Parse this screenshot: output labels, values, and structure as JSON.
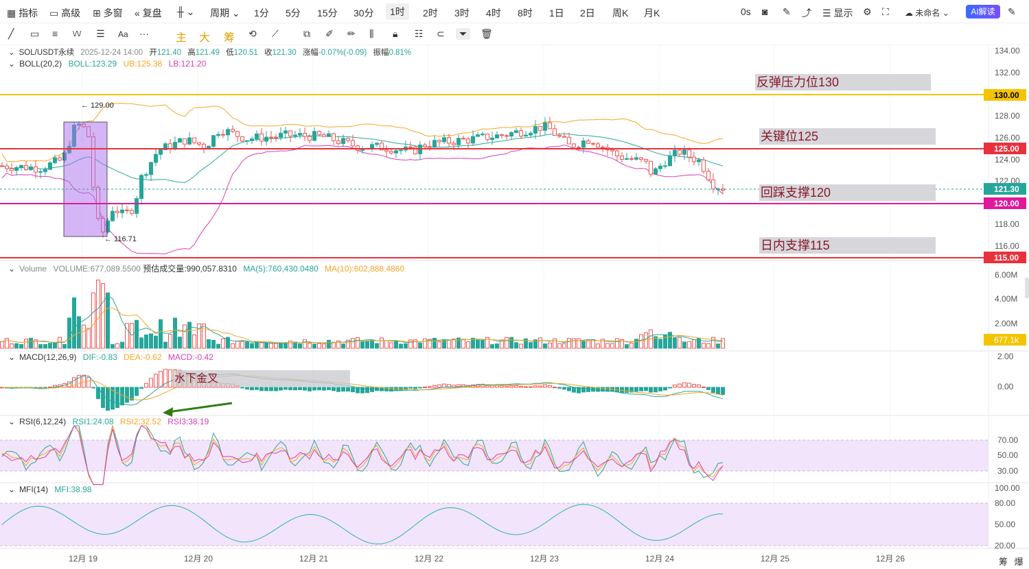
{
  "toolbar": {
    "indicators": "指标",
    "advanced": "高级",
    "multi_window": "多窗",
    "replay": "复盘",
    "chart_type_icon": "candles-icon",
    "period": "周期",
    "intervals": [
      "1分",
      "5分",
      "15分",
      "30分",
      "1时",
      "2时",
      "3时",
      "4时",
      "8时",
      "1日",
      "2日",
      "周K",
      "月K"
    ],
    "active_interval": "1时",
    "countdown": "0s",
    "display": "显示",
    "layout_name": "未命名",
    "ai_button": "AI解读"
  },
  "drawbar": {
    "tool_labels": [
      "Aa",
      "主",
      "大",
      "筹"
    ]
  },
  "legend": {
    "main": {
      "symbol": "SOL/USDT永续",
      "time": "2025-12-24 14:00",
      "open_l": "开",
      "open": "121.40",
      "high_l": "高",
      "high": "121.49",
      "low_l": "低",
      "low": "120.51",
      "close_l": "收",
      "close": "121.30",
      "chg_l": "涨幅",
      "chg": "-0.07%(-0.09)",
      "amp_l": "振幅",
      "amp": "0.81%"
    },
    "boll": {
      "name": "BOLL(20,2)",
      "boll": "BOLL:123.29",
      "ub": "UB:125.38",
      "lb": "LB:121.20"
    },
    "volume": {
      "name": "Volume",
      "vol": "VOLUME:677,089.5500",
      "est": "预估成交量:990,057.8310",
      "ma5": "MA(5):760,430.0480",
      "ma10": "MA(10):602,888.4860"
    },
    "macd": {
      "name": "MACD(12,26,9)",
      "dif": "DIF:-0.83",
      "dea": "DEA:-0.62",
      "macd": "MACD:-0.42"
    },
    "rsi": {
      "name": "RSI(6,12,24)",
      "r1": "RSI1:24.08",
      "r2": "RSI2:32.52",
      "r3": "RSI3:38.19"
    },
    "mfi": {
      "name": "MFI(14)",
      "mfi": "MFI:38.98"
    }
  },
  "annotations": {
    "res130": "反弹压力位130",
    "key125": "关键位125",
    "sup120": "回踩支撑120",
    "sup115": "日内支撑115",
    "macd_note": "水下金叉",
    "high_mark": "129.00",
    "low_mark": "116.71"
  },
  "price_axis": [
    "134.00",
    "132.00",
    "130.00",
    "128.00",
    "126.00",
    "125.00",
    "124.00",
    "122.00",
    "121.30",
    "120.00",
    "118.00",
    "116.00",
    "115.00"
  ],
  "price_tags": [
    {
      "label": "130.00",
      "color": "#f5c400",
      "text": "#000"
    },
    {
      "label": "125.00",
      "color": "#e8313b",
      "text": "#fff"
    },
    {
      "label": "121.30",
      "color": "#26a69a",
      "text": "#fff"
    },
    {
      "label": "120.00",
      "color": "#e0189c",
      "text": "#fff"
    },
    {
      "label": "115.00",
      "color": "#e8313b",
      "text": "#fff"
    }
  ],
  "vol_axis": [
    "6.00M",
    "4.00M",
    "2.00M",
    "677.1k"
  ],
  "macd_axis": [
    "2.00",
    "0.00"
  ],
  "rsi_axis": [
    "70.00",
    "50.00",
    "30.00"
  ],
  "mfi_axis": [
    "100.00",
    "80.00",
    "50.00",
    "20.00"
  ],
  "dates": [
    "12月 19",
    "12月 20",
    "12月 21",
    "12月 22",
    "12月 23",
    "12月 24",
    "12月 25",
    "12月 26"
  ],
  "footer": {
    "chips": "筹",
    "blast": "爆"
  },
  "colors": {
    "up": "#26a69a",
    "down": "#ef5350",
    "grid": "#f2f2f2"
  }
}
